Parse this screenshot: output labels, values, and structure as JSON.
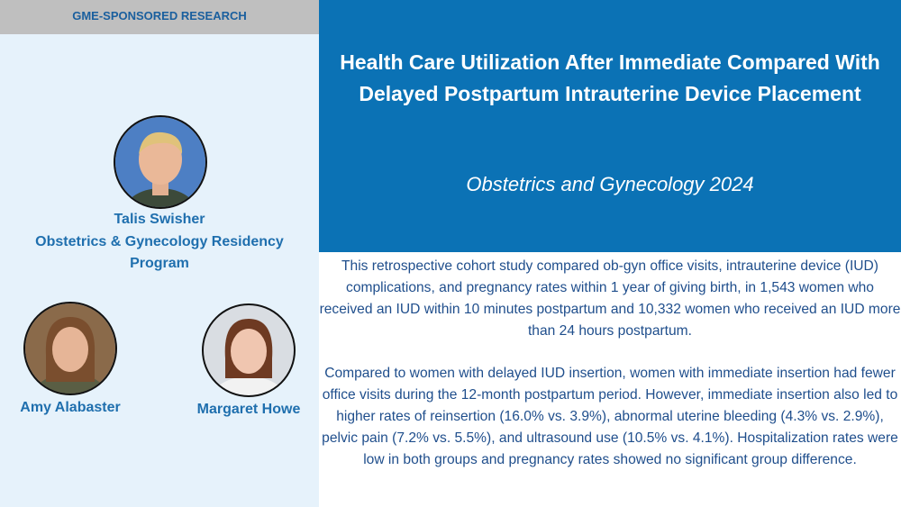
{
  "header": {
    "label": "GME-SPONSORED RESEARCH"
  },
  "feature": {
    "title": "Health Care Utilization After Immediate Compared With Delayed Postpartum Intrauterine Device Placement",
    "journal": "Obstetrics and Gynecology 2024"
  },
  "people": [
    {
      "name": "Talis Swisher",
      "affiliation": "Obstetrics & Gynecology Residency Program"
    },
    {
      "name": "Amy Alabaster"
    },
    {
      "name": "Margaret Howe"
    }
  ],
  "summary": [
    "This retrospective cohort study compared ob-gyn office visits, intrauterine device (IUD) complications, and pregnancy rates within 1 year of giving birth, in 1,543 women who received an IUD within 10 minutes postpartum and 10,332 women who received an IUD more than 24 hours postpartum.",
    "Compared to women with delayed IUD insertion, women with immediate insertion had fewer office visits during the 12-month postpartum period. However, immediate insertion also led to higher rates of reinsertion (16.0% vs. 3.9%), abnormal uterine bleeding (4.3% vs. 2.9%), pelvic pain (7.2% vs. 5.5%), and ultrasound use (10.5% vs. 4.1%). Hospitalization rates were low in both groups and pregnancy rates showed no significant group difference."
  ]
}
